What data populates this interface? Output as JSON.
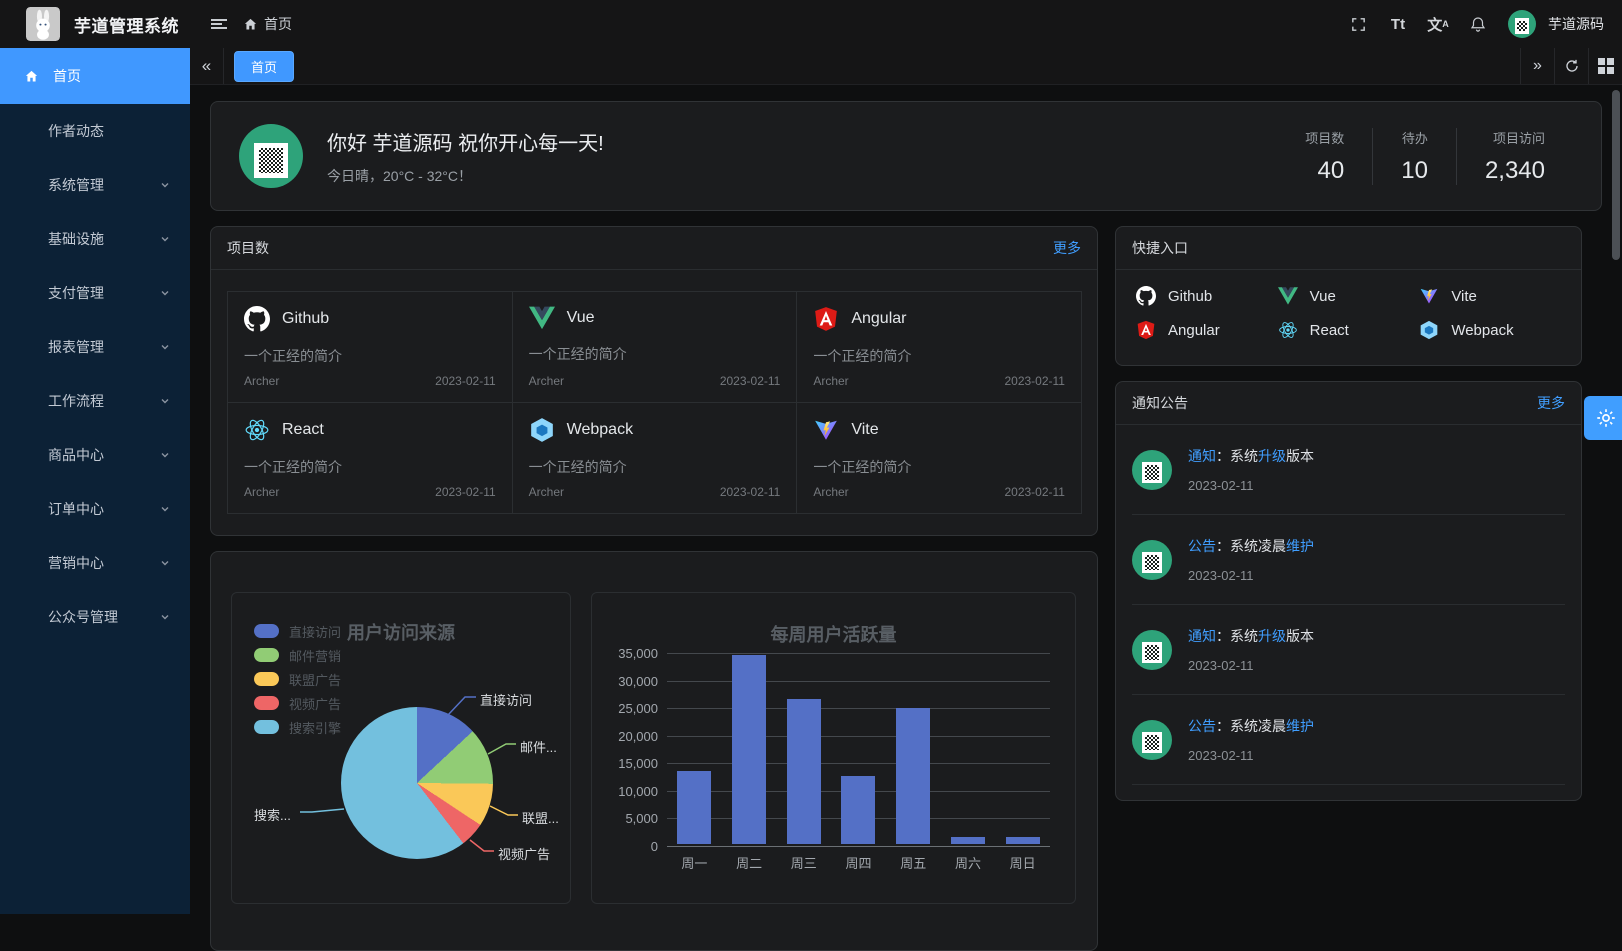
{
  "app": {
    "title": "芋道管理系统",
    "user": "芋道源码",
    "accent": "#409eff"
  },
  "header": {
    "breadcrumb_home": "首页",
    "icons": [
      "menu-fold",
      "fullscreen",
      "font-size",
      "translate",
      "bell"
    ],
    "font_size_glyph": "Tt",
    "translate_glyph": "文"
  },
  "tabbar": {
    "active_tab": "首页",
    "collapse_glyph": "«",
    "expand_glyph": "»"
  },
  "sidebar": {
    "items": [
      {
        "label": "首页"
      },
      {
        "label": "作者动态"
      },
      {
        "label": "系统管理"
      },
      {
        "label": "基础设施"
      },
      {
        "label": "支付管理"
      },
      {
        "label": "报表管理"
      },
      {
        "label": "工作流程"
      },
      {
        "label": "商品中心"
      },
      {
        "label": "订单中心"
      },
      {
        "label": "营销中心"
      },
      {
        "label": "公众号管理"
      }
    ]
  },
  "welcome": {
    "title": "你好 芋道源码 祝你开心每一天!",
    "subtitle": "今日晴，20°C - 32°C！",
    "stats": [
      {
        "label": "项目数",
        "value": "40"
      },
      {
        "label": "待办",
        "value": "10"
      },
      {
        "label": "项目访问",
        "value": "2,340"
      }
    ]
  },
  "projects": {
    "title": "项目数",
    "more": "更多",
    "items": [
      {
        "name": "Github",
        "desc": "一个正经的简介",
        "author": "Archer",
        "date": "2023-02-11"
      },
      {
        "name": "Vue",
        "desc": "一个正经的简介",
        "author": "Archer",
        "date": "2023-02-11"
      },
      {
        "name": "Angular",
        "desc": "一个正经的简介",
        "author": "Archer",
        "date": "2023-02-11"
      },
      {
        "name": "React",
        "desc": "一个正经的简介",
        "author": "Archer",
        "date": "2023-02-11"
      },
      {
        "name": "Webpack",
        "desc": "一个正经的简介",
        "author": "Archer",
        "date": "2023-02-11"
      },
      {
        "name": "Vite",
        "desc": "一个正经的简介",
        "author": "Archer",
        "date": "2023-02-11"
      }
    ]
  },
  "shortcuts": {
    "title": "快捷入口",
    "items": [
      {
        "label": "Github"
      },
      {
        "label": "Vue"
      },
      {
        "label": "Vite"
      },
      {
        "label": "Angular"
      },
      {
        "label": "React"
      },
      {
        "label": "Webpack"
      }
    ]
  },
  "notices": {
    "title": "通知公告",
    "more": "更多",
    "items": [
      {
        "tag": "通知",
        "pre": "：系统",
        "hl": "升级",
        "post": "版本",
        "date": "2023-02-11"
      },
      {
        "tag": "公告",
        "pre": "：系统凌晨",
        "hl": "维护",
        "post": "",
        "date": "2023-02-11"
      },
      {
        "tag": "通知",
        "pre": "：系统",
        "hl": "升级",
        "post": "版本",
        "date": "2023-02-11"
      },
      {
        "tag": "公告",
        "pre": "：系统凌晨",
        "hl": "维护",
        "post": "",
        "date": "2023-02-11"
      }
    ]
  },
  "chart_data": [
    {
      "type": "pie",
      "title": "用户访问来源",
      "legend": [
        "直接访问",
        "邮件营销",
        "联盟广告",
        "视频广告",
        "搜索引擎"
      ],
      "values": [
        335,
        310,
        234,
        135,
        1548
      ],
      "colors": [
        "#5470c6",
        "#91cc75",
        "#fac858",
        "#ee6666",
        "#73c0de"
      ],
      "callouts": [
        "直接访问",
        "邮件...",
        "联盟...",
        "视频广告",
        "搜索..."
      ],
      "legend_position": "top-left"
    },
    {
      "type": "bar",
      "title": "每周用户活跃量",
      "categories": [
        "周一",
        "周二",
        "周三",
        "周四",
        "周五",
        "周六",
        "周日"
      ],
      "values": [
        13300,
        34300,
        26300,
        12400,
        24700,
        1300,
        1300
      ],
      "color": "#5470c6",
      "ylim": [
        0,
        35000
      ],
      "yticks": [
        "35,000",
        "30,000",
        "25,000",
        "20,000",
        "15,000",
        "10,000",
        "5,000",
        "0"
      ],
      "grid": true
    }
  ]
}
